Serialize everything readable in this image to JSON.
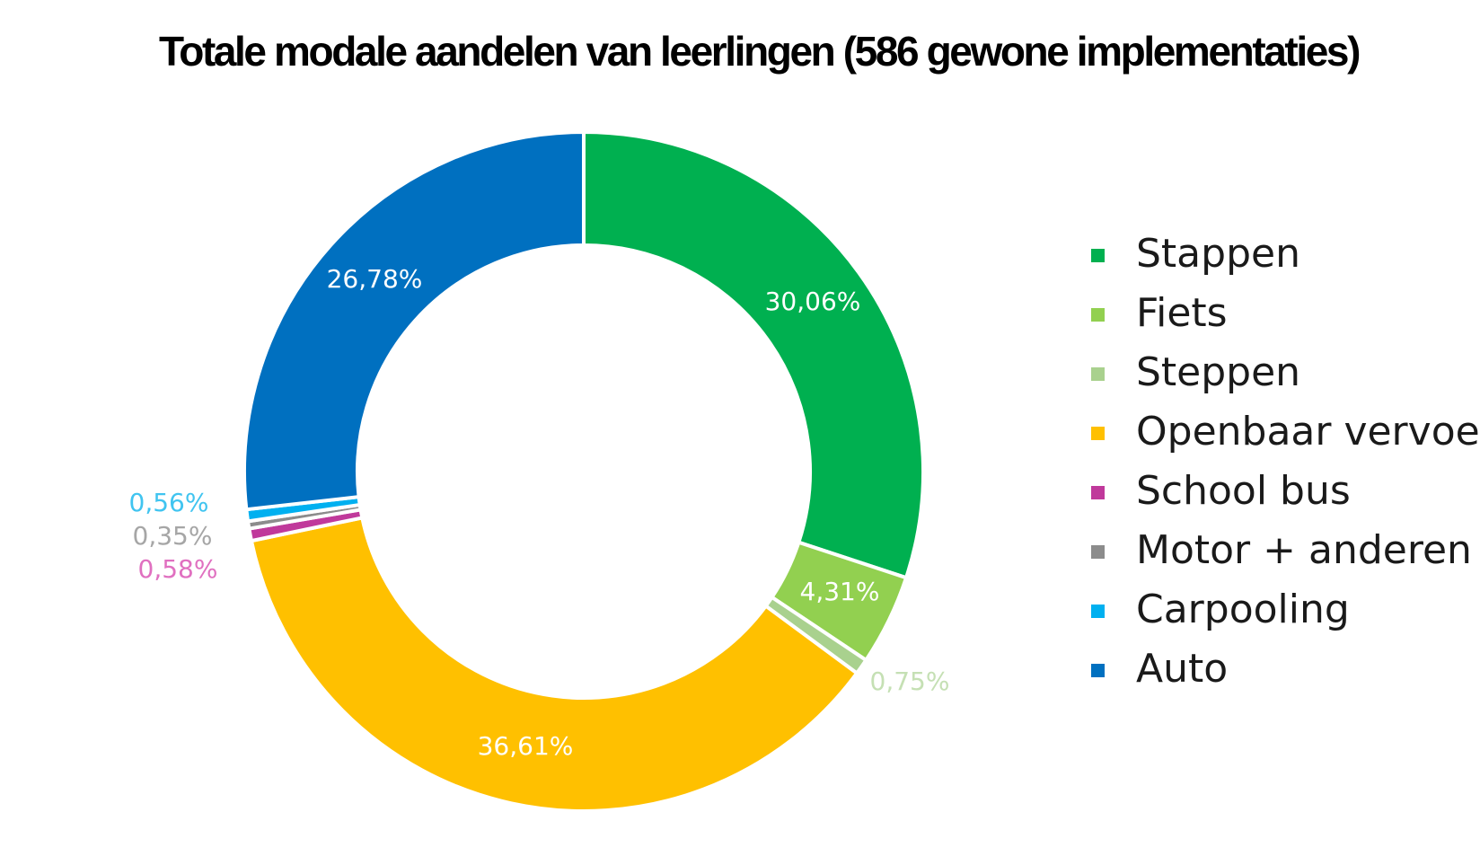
{
  "chart_data": {
    "type": "pie",
    "variant": "donut",
    "title": "Totale modale aandelen van leerlingen (586 gewone implementaties)",
    "legend_position": "right",
    "slices": [
      {
        "name": "Stappen",
        "value": 30.06,
        "label": "30,06%",
        "color": "#00B050",
        "label_color": "#ffffff"
      },
      {
        "name": "Fiets",
        "value": 4.31,
        "label": "4,31%",
        "color": "#92D050",
        "label_color": "#ffffff"
      },
      {
        "name": "Steppen",
        "value": 0.75,
        "label": "0,75%",
        "color": "#A9D18E",
        "label_color": "#C5E0B4"
      },
      {
        "name": "Openbaar vervoer",
        "value": 36.61,
        "label": "36,61%",
        "color": "#FFC000",
        "label_color": "#ffffff"
      },
      {
        "name": "School bus",
        "value": 0.58,
        "label": "0,58%",
        "color": "#C0399B",
        "label_color": "#E070C0"
      },
      {
        "name": "Motor + anderen",
        "value": 0.35,
        "label": "0,35%",
        "color": "#8C8C8C",
        "label_color": "#A6A6A6"
      },
      {
        "name": "Carpooling",
        "value": 0.56,
        "label": "0,56%",
        "color": "#00B0F0",
        "label_color": "#40C4F0"
      },
      {
        "name": "Auto",
        "value": 26.78,
        "label": "26,78%",
        "color": "#0070C0",
        "label_color": "#ffffff"
      }
    ]
  }
}
